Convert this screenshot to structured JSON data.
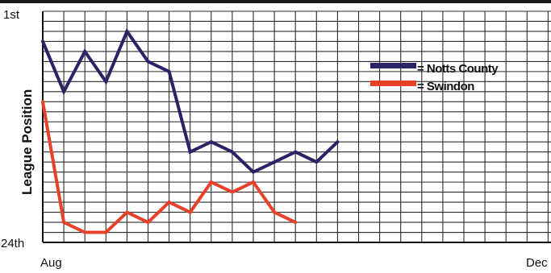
{
  "chart_data": {
    "type": "line",
    "ylabel": "League Position",
    "yticks": [
      "1st",
      "24th"
    ],
    "xticks": [
      "Aug",
      "Dec"
    ],
    "ylim": [
      24,
      1
    ],
    "y_inverted": true,
    "grid": true,
    "legend_position": "top-right",
    "series": [
      {
        "name": "= Notts County",
        "color": "#2a2366",
        "values": [
          4,
          9,
          5,
          8,
          3,
          6,
          7,
          15,
          14,
          15,
          17,
          16,
          15,
          16,
          14
        ]
      },
      {
        "name": "= Swindon",
        "color": "#e9402a",
        "values": [
          10,
          22,
          23,
          23,
          21,
          22,
          20,
          21,
          18,
          19,
          18,
          21,
          22
        ]
      }
    ]
  }
}
